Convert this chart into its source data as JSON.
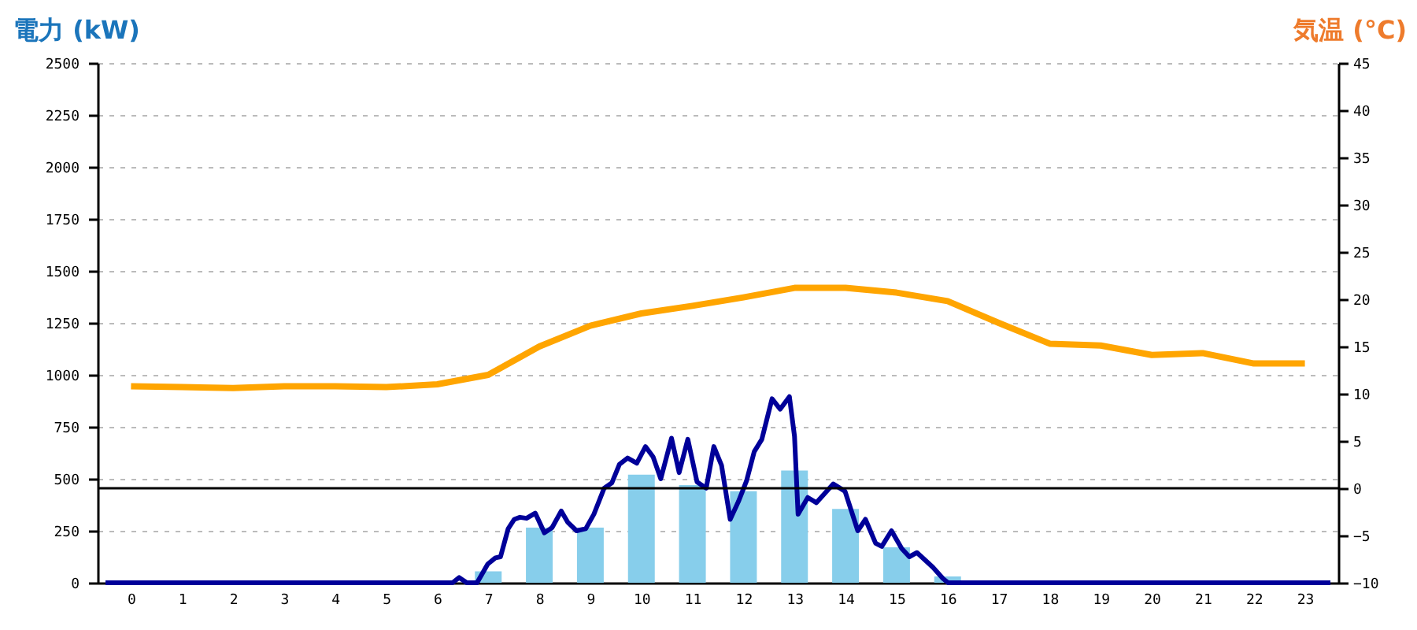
{
  "chart_data": {
    "type": "bar",
    "ylabel": "電力 (kW)",
    "y2label": "気温 (°C)",
    "x": [
      0,
      1,
      2,
      3,
      4,
      5,
      6,
      7,
      8,
      9,
      10,
      11,
      12,
      13,
      14,
      15,
      16,
      17,
      18,
      19,
      20,
      21,
      22,
      23
    ],
    "xlim": [
      -0.5,
      23.5
    ],
    "xticks": [
      0,
      1,
      2,
      3,
      4,
      5,
      6,
      7,
      8,
      9,
      10,
      11,
      12,
      13,
      14,
      15,
      16,
      17,
      18,
      19,
      20,
      21,
      22,
      23
    ],
    "ylim": [
      0,
      2500
    ],
    "yticks": [
      0,
      250,
      500,
      750,
      1000,
      1250,
      1500,
      1750,
      2000,
      2250,
      2500
    ],
    "y2lim": [
      -10,
      45
    ],
    "y2ticks": [
      -10,
      -5,
      0,
      5,
      10,
      15,
      20,
      25,
      30,
      35,
      40,
      45
    ],
    "grid": "y",
    "series": [
      {
        "color": "#87ceeb",
        "values": [
          0,
          0,
          0,
          0,
          0,
          0,
          0,
          55,
          265,
          265,
          520,
          470,
          440,
          540,
          355,
          170,
          30,
          0,
          0,
          0,
          0,
          0,
          0,
          0
        ]
      },
      {
        "type": "line",
        "axis": "y2",
        "color": "#ffa500",
        "values": [
          10.8,
          10.7,
          10.6,
          10.8,
          10.8,
          10.7,
          11.0,
          12.0,
          15.0,
          17.2,
          18.5,
          19.3,
          20.2,
          21.2,
          21.2,
          20.7,
          19.8,
          17.5,
          15.3,
          15.1,
          14.1,
          14.3,
          13.2,
          13.2
        ]
      },
      {
        "type": "line",
        "color": "#000099",
        "x": [
          -0.5,
          6.3,
          6.43,
          6.58,
          6.78,
          6.99,
          7.14,
          7.24,
          7.39,
          7.51,
          7.62,
          7.75,
          7.92,
          8.1,
          8.25,
          8.43,
          8.56,
          8.73,
          8.91,
          9.07,
          9.27,
          9.42,
          9.57,
          9.73,
          9.91,
          10.08,
          10.23,
          10.38,
          10.59,
          10.74,
          10.91,
          11.09,
          11.27,
          11.42,
          11.57,
          11.74,
          11.9,
          12.06,
          12.21,
          12.36,
          12.56,
          12.72,
          12.9,
          13.0,
          13.07,
          13.26,
          13.43,
          13.76,
          13.99,
          14.24,
          14.39,
          14.59,
          14.71,
          14.9,
          15.1,
          15.25,
          15.4,
          15.71,
          15.91,
          16.01,
          23.5
        ],
        "values": [
          0,
          0,
          25,
          0,
          0,
          90,
          120,
          125,
          260,
          305,
          315,
          310,
          335,
          240,
          265,
          345,
          290,
          250,
          260,
          330,
          455,
          480,
          570,
          600,
          575,
          655,
          605,
          500,
          695,
          530,
          690,
          485,
          455,
          655,
          565,
          305,
          390,
          490,
          630,
          690,
          885,
          835,
          895,
          705,
          330,
          410,
          385,
          475,
          440,
          250,
          305,
          190,
          175,
          250,
          165,
          125,
          145,
          75,
          20,
          0,
          0
        ]
      }
    ],
    "ref_lines": [
      {
        "axis": "y2",
        "value": 0,
        "color": "#000000"
      }
    ]
  }
}
